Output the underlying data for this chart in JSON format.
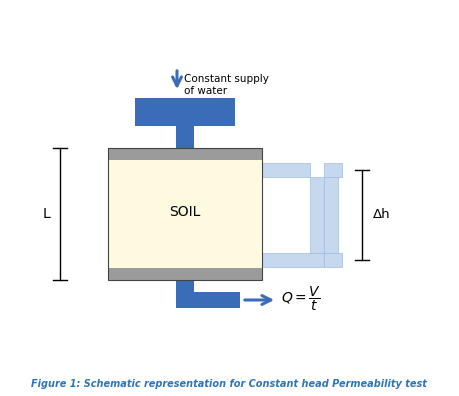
{
  "title": "Figure 1: Schematic representation for Constant head Permeability test",
  "title_color": "#2E75B6",
  "bg_color": "#ffffff",
  "blue_dark": "#3B6CB7",
  "blue_light": "#C5D8EE",
  "blue_light_border": "#A0BBDD",
  "gray": "#9B9B9B",
  "soil_color": "#FEFAE0",
  "soil_label": "SOIL",
  "arrow_label_line1": "Constant supply",
  "arrow_label_line2": "of water",
  "delta_h_label": "Δh",
  "L_label": "L",
  "figsize": [
    4.59,
    3.96
  ],
  "dpi": 100
}
